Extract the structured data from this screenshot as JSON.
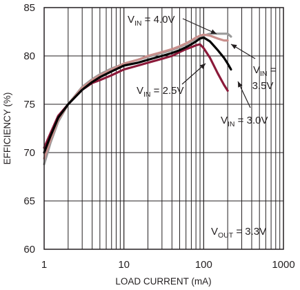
{
  "chart_data": {
    "type": "line",
    "title": "",
    "xlabel": "LOAD CURRENT (mA)",
    "ylabel": "EFFICIENCY (%)",
    "x_scale": "log",
    "xlim": [
      1,
      1000
    ],
    "ylim": [
      60,
      85
    ],
    "x_ticks": [
      1,
      10,
      100,
      1000
    ],
    "x_tick_labels": [
      "1",
      "10",
      "100",
      "1000"
    ],
    "y_ticks": [
      60,
      65,
      70,
      75,
      80,
      85
    ],
    "y_tick_labels": [
      "60",
      "65",
      "70",
      "75",
      "80",
      "85"
    ],
    "grid": true,
    "series": [
      {
        "name": "V_IN = 2.5V",
        "color": "#8b1a3a",
        "x": [
          1,
          1.2,
          1.5,
          2,
          3,
          4,
          5,
          7,
          10,
          15,
          20,
          30,
          40,
          50,
          60,
          70,
          80,
          90,
          100,
          120,
          150,
          180,
          200
        ],
        "y": [
          70.5,
          72,
          73.8,
          75,
          76.5,
          77.2,
          77.5,
          78,
          78.6,
          79,
          79.3,
          79.7,
          80,
          80.4,
          80.7,
          80.9,
          81.1,
          81.2,
          80.8,
          79.8,
          78.2,
          77,
          76.4
        ]
      },
      {
        "name": "V_IN = 3.0V",
        "color": "#000000",
        "x": [
          1,
          1.2,
          1.5,
          2,
          3,
          4,
          5,
          7,
          10,
          15,
          20,
          30,
          40,
          50,
          60,
          70,
          80,
          90,
          100,
          120,
          150,
          180,
          200,
          220
        ],
        "y": [
          70,
          71.7,
          73.6,
          75,
          76.5,
          77.3,
          77.8,
          78.4,
          79,
          79.3,
          79.6,
          80,
          80.3,
          80.6,
          80.9,
          81.2,
          81.5,
          81.8,
          81.9,
          81.5,
          80.6,
          79.8,
          79.2,
          78.6
        ]
      },
      {
        "name": "V_IN = 3.5V",
        "color": "#c98f8c",
        "x": [
          1,
          1.2,
          1.5,
          2,
          3,
          4,
          5,
          7,
          10,
          15,
          20,
          30,
          40,
          50,
          60,
          70,
          80,
          90,
          100,
          120,
          150,
          180,
          200
        ],
        "y": [
          69.4,
          71.3,
          73.4,
          75,
          76.7,
          77.5,
          78,
          78.6,
          79.2,
          79.6,
          80,
          80.4,
          80.7,
          81,
          81.3,
          81.6,
          81.9,
          82.1,
          82.2,
          82.1,
          81.8,
          81.6,
          81.6
        ]
      },
      {
        "name": "V_IN = 4.0V",
        "color": "#9a9a9a",
        "x": [
          1,
          1.2,
          1.5,
          2,
          3,
          4,
          5,
          7,
          10,
          15,
          20,
          30,
          40,
          50,
          60,
          70,
          80,
          90,
          100,
          120,
          150,
          180,
          200,
          220
        ],
        "y": [
          68.8,
          71,
          73.2,
          75,
          76.8,
          77.6,
          78.1,
          78.7,
          79.2,
          79.6,
          79.9,
          80.3,
          80.6,
          80.9,
          81.2,
          81.5,
          81.8,
          82,
          82.1,
          82.3,
          82.3,
          82.3,
          82.3,
          82
        ]
      }
    ],
    "annotations": [
      {
        "main": "V",
        "sub": "IN",
        "rest": " = 4.0V"
      },
      {
        "main": "V",
        "sub": "IN",
        "rest": " ="
      },
      {
        "main": "",
        "sub": "",
        "rest": "3.5V"
      },
      {
        "main": "V",
        "sub": "IN",
        "rest": " = 2.5V"
      },
      {
        "main": "V",
        "sub": "IN",
        "rest": " = 3.0V"
      },
      {
        "main": "V",
        "sub": "OUT",
        "rest": " = 3.3V"
      }
    ]
  }
}
